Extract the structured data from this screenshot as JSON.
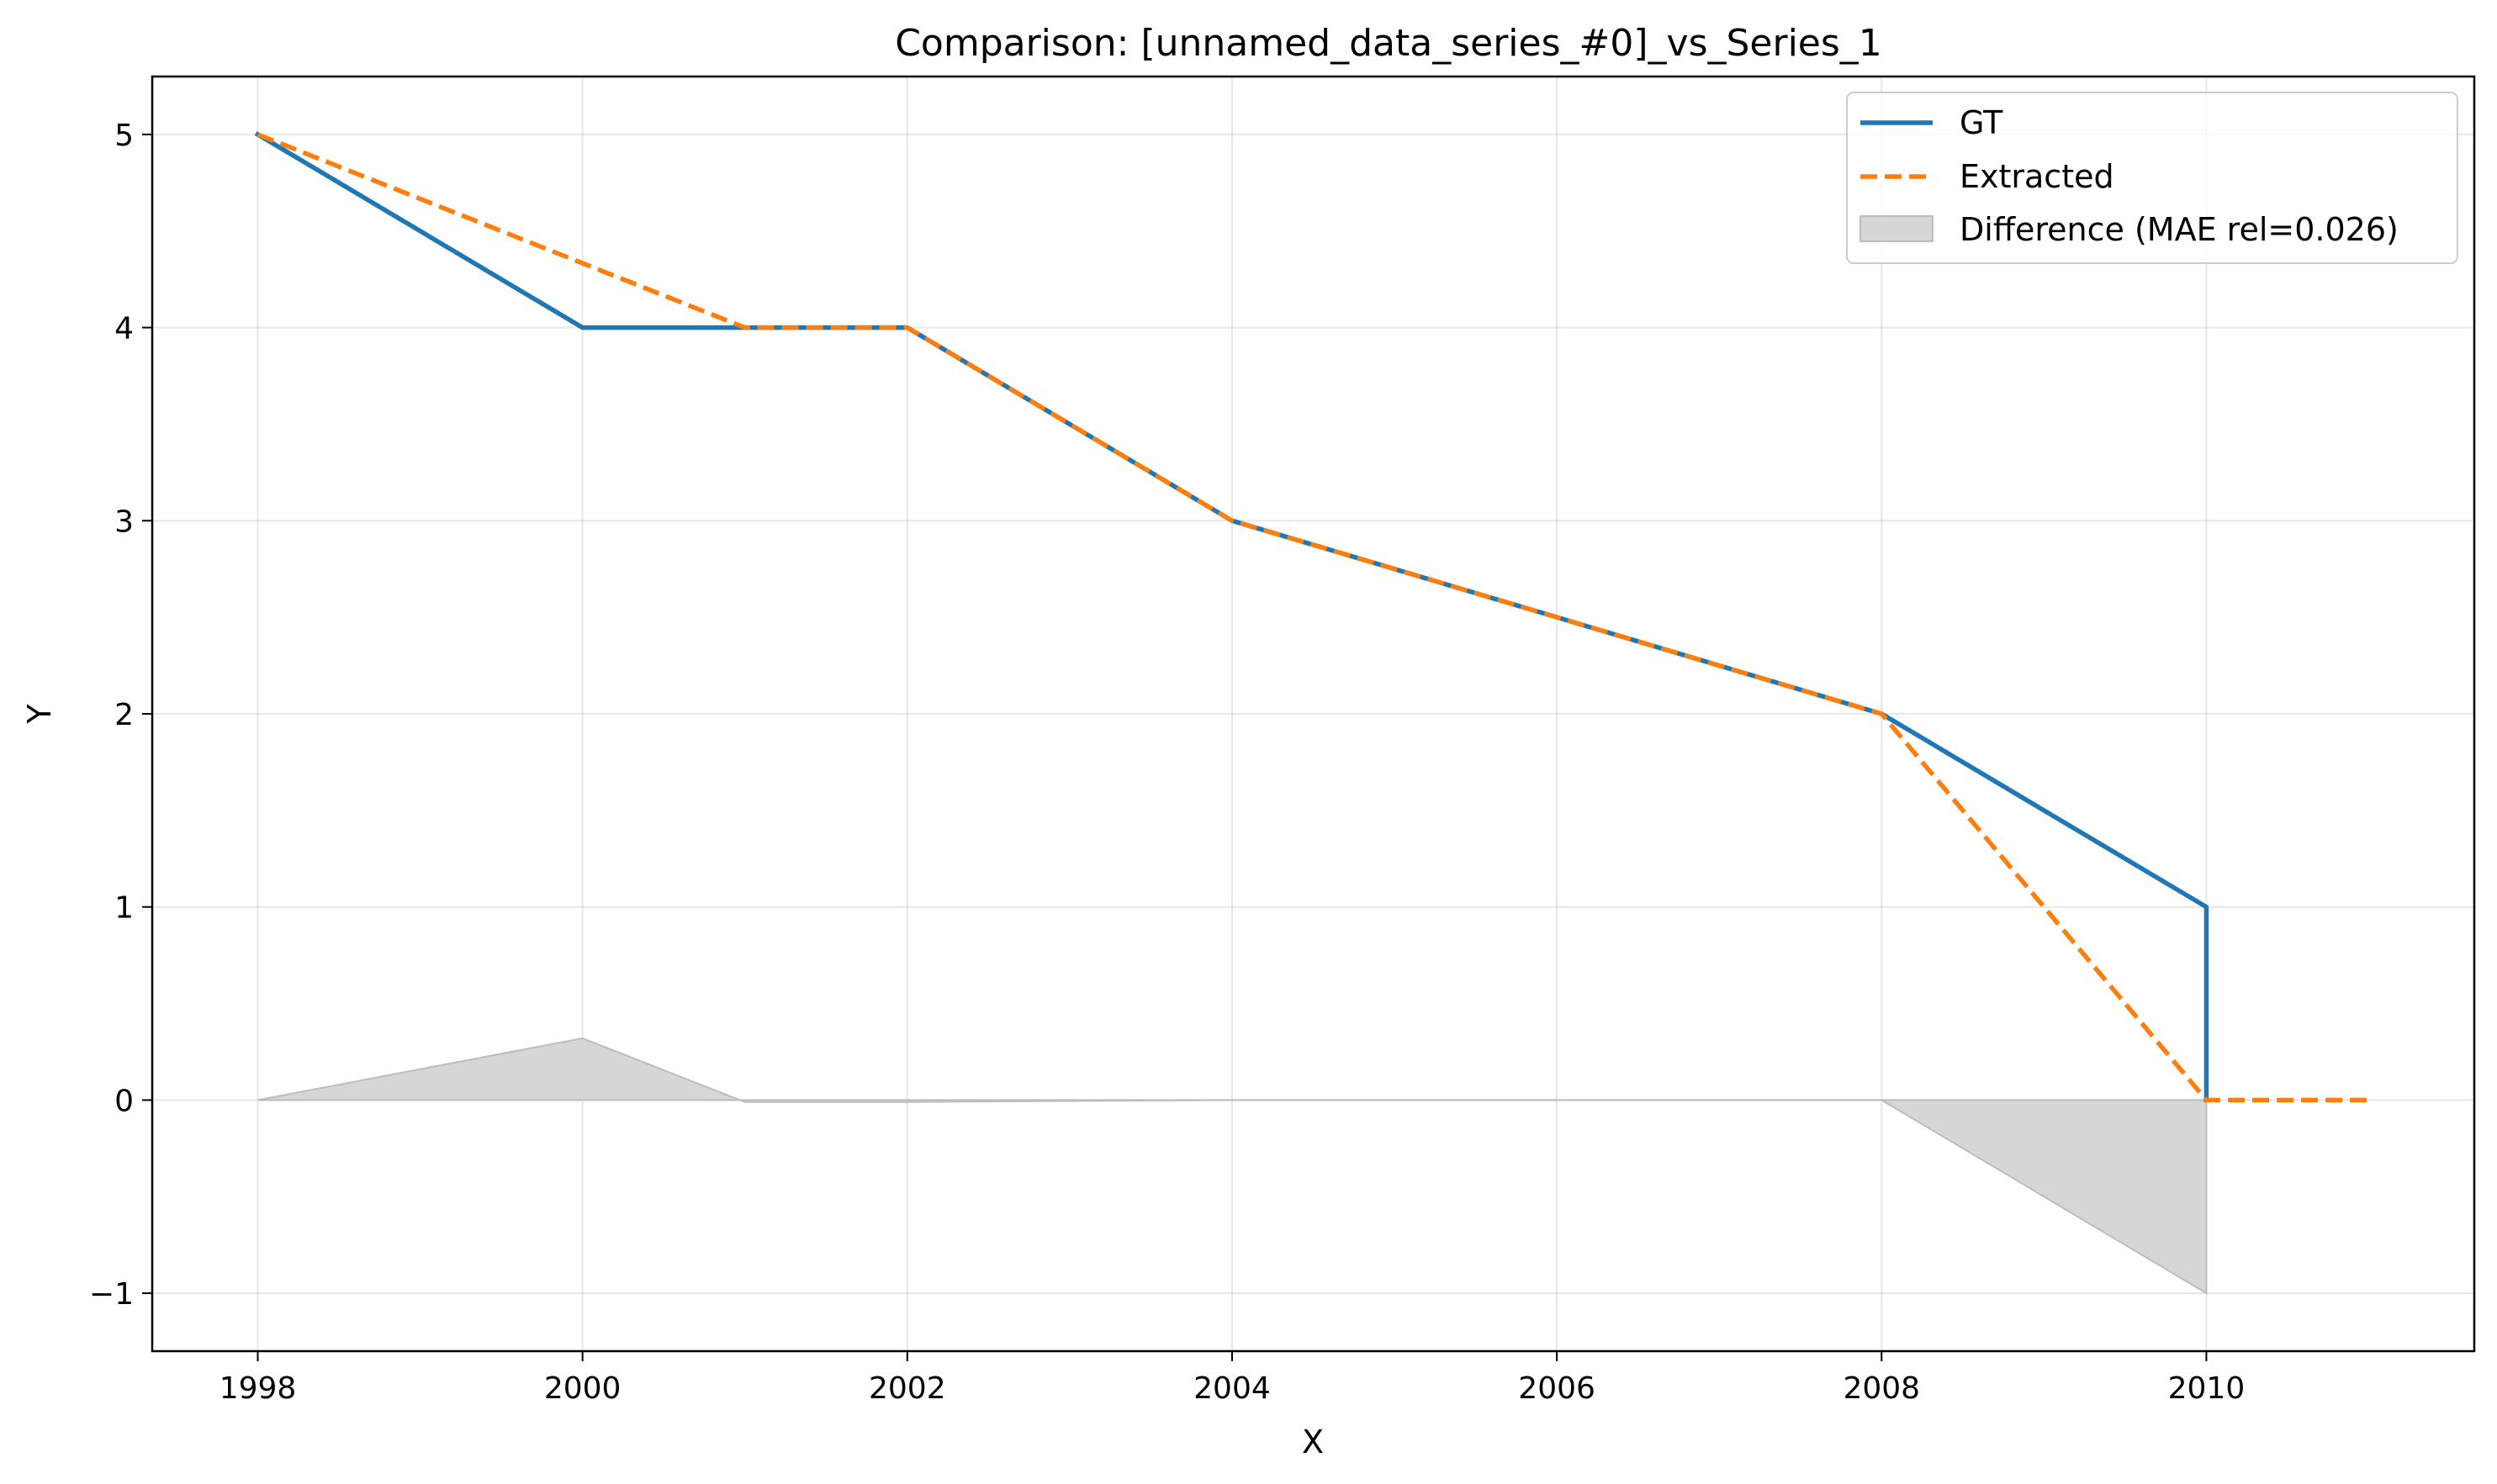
{
  "chart_data": {
    "type": "line",
    "title": "Comparison: [unnamed_data_series_#0]_vs_Series_1",
    "xlabel": "X",
    "ylabel": "Y",
    "xlim": [
      1997.35,
      2011.65
    ],
    "ylim": [
      -1.3,
      5.3
    ],
    "xticks": [
      1998,
      2000,
      2002,
      2004,
      2006,
      2008,
      2010
    ],
    "xtick_labels": [
      "1998",
      "2000",
      "2002",
      "2004",
      "2006",
      "2008",
      "2010"
    ],
    "yticks": [
      -1,
      0,
      1,
      2,
      3,
      4,
      5
    ],
    "ytick_labels": [
      "−1",
      "0",
      "1",
      "2",
      "3",
      "4",
      "5"
    ],
    "grid": true,
    "legend_position": "top-right",
    "series": [
      {
        "name": "GT",
        "color": "#1f77b4",
        "style": "solid",
        "x": [
          1998,
          2000,
          2002,
          2004,
          2006,
          2008,
          2010,
          2010
        ],
        "y": [
          5,
          4,
          4,
          3,
          2.5,
          2,
          1,
          0
        ]
      },
      {
        "name": "Extracted",
        "color": "#ff7f0e",
        "style": "dashed",
        "x": [
          1998,
          2001,
          2002,
          2004,
          2006,
          2008,
          2010,
          2011
        ],
        "y": [
          5,
          4,
          4,
          3,
          2.5,
          2,
          0,
          0
        ]
      }
    ],
    "difference": {
      "name": "Difference (MAE rel=0.026)",
      "color": "#d6d6d6",
      "edge_color": "#bdbdbd",
      "x": [
        1998,
        2000,
        2001,
        2002,
        2004,
        2006,
        2008,
        2010
      ],
      "y": [
        0,
        0.32,
        -0.01,
        -0.01,
        0,
        0,
        0,
        -1
      ]
    }
  }
}
